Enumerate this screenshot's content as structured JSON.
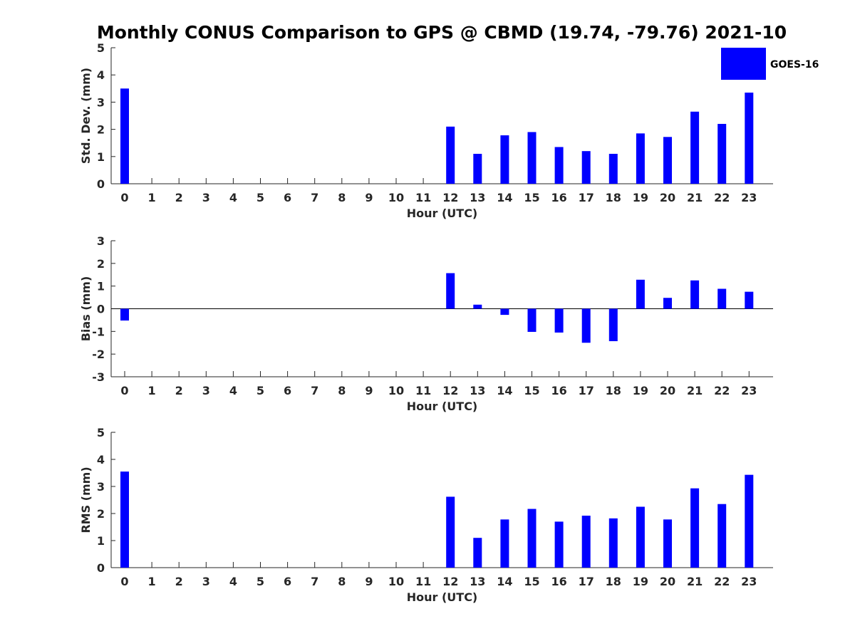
{
  "title": "Monthly CONUS Comparison to GPS @ CBMD (19.74, -79.76) 2021-10",
  "legend": {
    "label": "GOES-16",
    "color": "#0000ff",
    "placement": "top-right"
  },
  "chart_data": [
    {
      "type": "bar",
      "xlabel": "Hour (UTC)",
      "ylabel": "Std. Dev. (mm)",
      "ylim": [
        0,
        5
      ],
      "yticks": [
        0,
        1,
        2,
        3,
        4,
        5
      ],
      "categories": [
        "0",
        "1",
        "2",
        "3",
        "4",
        "5",
        "6",
        "7",
        "8",
        "9",
        "10",
        "11",
        "12",
        "13",
        "14",
        "15",
        "16",
        "17",
        "18",
        "19",
        "20",
        "21",
        "22",
        "23"
      ],
      "series": [
        {
          "name": "GOES-16",
          "values": [
            3.5,
            null,
            null,
            null,
            null,
            null,
            null,
            null,
            null,
            null,
            null,
            null,
            2.1,
            1.1,
            1.78,
            1.9,
            1.35,
            1.2,
            1.1,
            1.85,
            1.72,
            2.65,
            2.2,
            3.35
          ]
        }
      ]
    },
    {
      "type": "bar",
      "xlabel": "Hour (UTC)",
      "ylabel": "Bias (mm)",
      "ylim": [
        -3,
        3
      ],
      "yticks": [
        -3,
        -2,
        -1,
        0,
        1,
        2,
        3
      ],
      "categories": [
        "0",
        "1",
        "2",
        "3",
        "4",
        "5",
        "6",
        "7",
        "8",
        "9",
        "10",
        "11",
        "12",
        "13",
        "14",
        "15",
        "16",
        "17",
        "18",
        "19",
        "20",
        "21",
        "22",
        "23"
      ],
      "series": [
        {
          "name": "GOES-16",
          "values": [
            -0.52,
            null,
            null,
            null,
            null,
            null,
            null,
            null,
            null,
            null,
            null,
            null,
            1.57,
            0.18,
            -0.27,
            -1.02,
            -1.05,
            -1.5,
            -1.43,
            1.28,
            0.48,
            1.25,
            0.88,
            0.75
          ]
        }
      ]
    },
    {
      "type": "bar",
      "xlabel": "Hour (UTC)",
      "ylabel": "RMS (mm)",
      "ylim": [
        0,
        5
      ],
      "yticks": [
        0,
        1,
        2,
        3,
        4,
        5
      ],
      "categories": [
        "0",
        "1",
        "2",
        "3",
        "4",
        "5",
        "6",
        "7",
        "8",
        "9",
        "10",
        "11",
        "12",
        "13",
        "14",
        "15",
        "16",
        "17",
        "18",
        "19",
        "20",
        "21",
        "22",
        "23"
      ],
      "series": [
        {
          "name": "GOES-16",
          "values": [
            3.55,
            null,
            null,
            null,
            null,
            null,
            null,
            null,
            null,
            null,
            null,
            null,
            2.62,
            1.1,
            1.78,
            2.17,
            1.7,
            1.92,
            1.82,
            2.25,
            1.78,
            2.93,
            2.35,
            3.43
          ]
        }
      ]
    }
  ]
}
